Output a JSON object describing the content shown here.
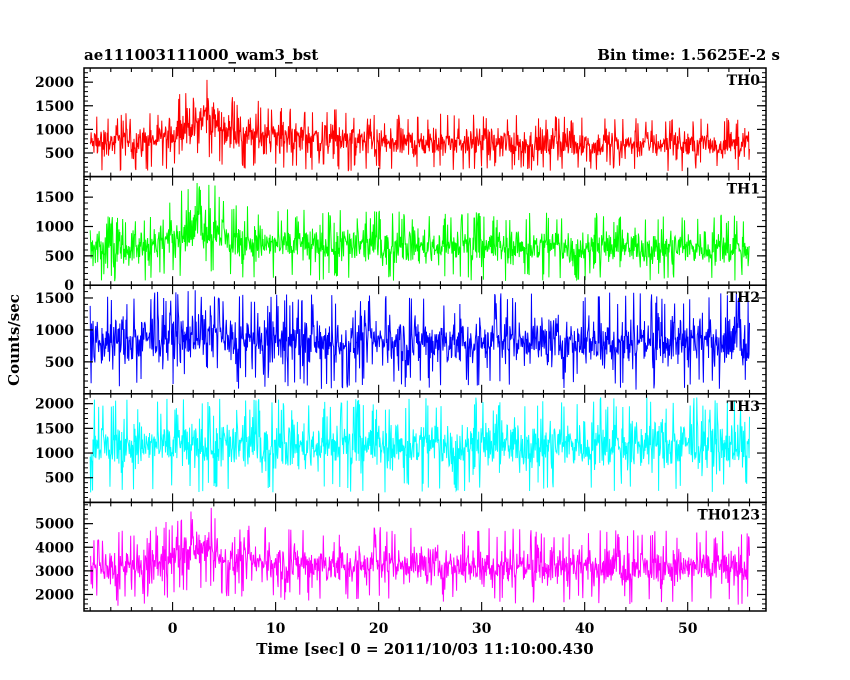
{
  "chart_data": {
    "type": "line",
    "title_left": "ae111003111000_wam3_bst",
    "title_right": "Bin time: 1.5625E-2 s",
    "xlabel": "Time [sec] 0 = 2011/10/03 11:10:00.430",
    "ylabel": "Counts/sec",
    "xlim": [
      -8.6,
      57.6
    ],
    "x_ticks": [
      0,
      10,
      20,
      30,
      40,
      50
    ],
    "x_data_range": [
      -8.0,
      56.0
    ],
    "panels": [
      {
        "label": "TH0",
        "color": "#ff0000",
        "ylim": [
          0,
          2300
        ],
        "y_ticks": [
          500,
          1000,
          1500,
          2000
        ],
        "envelope": [
          {
            "t": -8,
            "lo": 100,
            "hi": 1300,
            "mean": 650
          },
          {
            "t": -2,
            "lo": 110,
            "hi": 1400,
            "mean": 700
          },
          {
            "t": 1,
            "lo": 200,
            "hi": 1800,
            "mean": 1050
          },
          {
            "t": 3.5,
            "lo": 400,
            "hi": 2300,
            "mean": 1350
          },
          {
            "t": 5.5,
            "lo": 150,
            "hi": 1700,
            "mean": 950
          },
          {
            "t": 10,
            "lo": 150,
            "hi": 1550,
            "mean": 850
          },
          {
            "t": 20,
            "lo": 100,
            "hi": 1350,
            "mean": 700
          },
          {
            "t": 56,
            "lo": 100,
            "hi": 1250,
            "mean": 650
          }
        ]
      },
      {
        "label": "TH1",
        "color": "#00ff00",
        "ylim": [
          0,
          1850
        ],
        "y_ticks": [
          0,
          500,
          1000,
          1500
        ],
        "envelope": [
          {
            "t": -8,
            "lo": 50,
            "hi": 1150,
            "mean": 600
          },
          {
            "t": -2,
            "lo": 60,
            "hi": 1250,
            "mean": 650
          },
          {
            "t": 1,
            "lo": 150,
            "hi": 1650,
            "mean": 900
          },
          {
            "t": 3.5,
            "lo": 250,
            "hi": 1850,
            "mean": 1050
          },
          {
            "t": 5.5,
            "lo": 100,
            "hi": 1400,
            "mean": 750
          },
          {
            "t": 10,
            "lo": 80,
            "hi": 1300,
            "mean": 650
          },
          {
            "t": 56,
            "lo": 60,
            "hi": 1200,
            "mean": 600
          }
        ]
      },
      {
        "label": "TH2",
        "color": "#0000ff",
        "ylim": [
          0,
          1700
        ],
        "y_ticks": [
          500,
          1000,
          1500
        ],
        "envelope": [
          {
            "t": -8,
            "lo": 60,
            "hi": 1500,
            "mean": 800
          },
          {
            "t": 1,
            "lo": 150,
            "hi": 1650,
            "mean": 950
          },
          {
            "t": 3.5,
            "lo": 250,
            "hi": 1700,
            "mean": 1000
          },
          {
            "t": 6,
            "lo": 80,
            "hi": 1550,
            "mean": 820
          },
          {
            "t": 56,
            "lo": 60,
            "hi": 1600,
            "mean": 800
          }
        ]
      },
      {
        "label": "TH3",
        "color": "#00ffff",
        "ylim": [
          0,
          2200
        ],
        "y_ticks": [
          500,
          1000,
          1500,
          2000
        ],
        "envelope": [
          {
            "t": -8,
            "lo": 200,
            "hi": 2100,
            "mean": 1050
          },
          {
            "t": 56,
            "lo": 200,
            "hi": 2150,
            "mean": 1050
          }
        ]
      },
      {
        "label": "TH0123",
        "color": "#ff00ff",
        "ylim": [
          1300,
          5900
        ],
        "y_ticks": [
          2000,
          3000,
          4000,
          5000
        ],
        "envelope": [
          {
            "t": -8,
            "lo": 1500,
            "hi": 4600,
            "mean": 3050
          },
          {
            "t": -2,
            "lo": 1550,
            "hi": 4800,
            "mean": 3150
          },
          {
            "t": 1,
            "lo": 2000,
            "hi": 5400,
            "mean": 3700
          },
          {
            "t": 3.5,
            "lo": 2400,
            "hi": 5800,
            "mean": 4100
          },
          {
            "t": 5.5,
            "lo": 1800,
            "hi": 5000,
            "mean": 3500
          },
          {
            "t": 10,
            "lo": 1700,
            "hi": 4900,
            "mean": 3350
          },
          {
            "t": 56,
            "lo": 1550,
            "hi": 4700,
            "mean": 3100
          }
        ]
      }
    ]
  }
}
